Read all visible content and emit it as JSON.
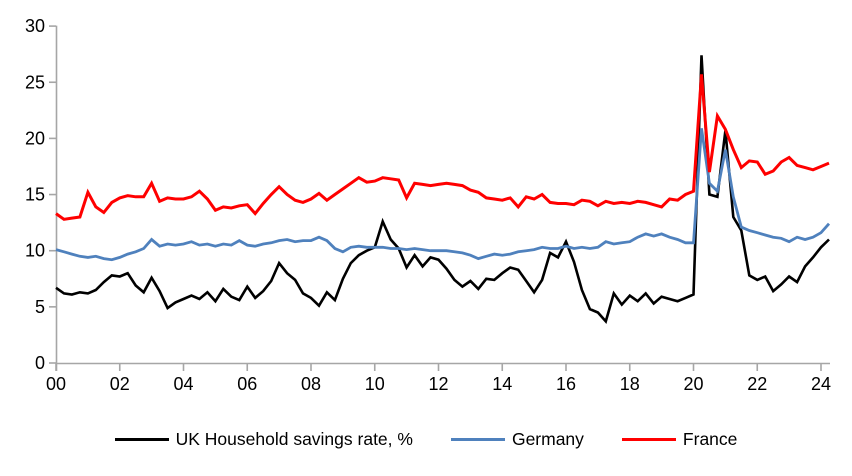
{
  "figure": {
    "background": "#ffffff"
  },
  "axis": {
    "color": "#a6a6a6",
    "label_color": "#000000"
  },
  "chart_data": {
    "type": "line",
    "title": "",
    "xlabel": "",
    "ylabel": "",
    "grid": false,
    "legend_position": "bottom",
    "ylim": [
      0,
      30
    ],
    "xlim": [
      2000,
      2024.6
    ],
    "y_ticks": [
      0,
      5,
      10,
      15,
      20,
      25,
      30
    ],
    "x_ticks": [
      {
        "value": 2000,
        "label": "00"
      },
      {
        "value": 2002,
        "label": "02"
      },
      {
        "value": 2004,
        "label": "04"
      },
      {
        "value": 2006,
        "label": "06"
      },
      {
        "value": 2008,
        "label": "08"
      },
      {
        "value": 2010,
        "label": "10"
      },
      {
        "value": 2012,
        "label": "12"
      },
      {
        "value": 2014,
        "label": "14"
      },
      {
        "value": 2016,
        "label": "16"
      },
      {
        "value": 2018,
        "label": "18"
      },
      {
        "value": 2020,
        "label": "20"
      },
      {
        "value": 2022,
        "label": "22"
      },
      {
        "value": 2024,
        "label": "24"
      }
    ],
    "x_start_year": 2000,
    "x_step_years": 0.25,
    "frequency": "quarterly",
    "period_range": "2000Q1-2024Q2",
    "series": [
      {
        "name": "UK Household savings rate, %",
        "color": "#000000",
        "line_width": 2.6,
        "values": [
          6.7,
          6.2,
          6.1,
          6.3,
          6.2,
          6.5,
          7.2,
          7.8,
          7.7,
          8.0,
          6.9,
          6.3,
          7.6,
          6.4,
          4.9,
          5.4,
          5.7,
          6.0,
          5.7,
          6.3,
          5.5,
          6.6,
          5.9,
          5.6,
          6.8,
          5.8,
          6.4,
          7.3,
          8.9,
          8.0,
          7.4,
          6.2,
          5.8,
          5.1,
          6.3,
          5.6,
          7.5,
          8.9,
          9.6,
          10.0,
          10.3,
          12.6,
          11.0,
          10.2,
          8.5,
          9.6,
          8.6,
          9.4,
          9.2,
          8.4,
          7.4,
          6.8,
          7.3,
          6.6,
          7.5,
          7.4,
          8.0,
          8.5,
          8.3,
          7.3,
          6.3,
          7.4,
          9.8,
          9.4,
          10.8,
          9.0,
          6.5,
          4.8,
          4.5,
          3.7,
          6.2,
          5.2,
          6.0,
          5.5,
          6.2,
          5.3,
          5.9,
          5.7,
          5.5,
          5.8,
          6.1,
          27.4,
          15.0,
          14.8,
          20.7,
          13.0,
          11.8,
          7.8,
          7.4,
          7.7,
          6.4,
          7.0,
          7.7,
          7.2,
          8.6,
          9.4,
          10.3,
          11.0
        ]
      },
      {
        "name": "Germany",
        "color": "#4f81bd",
        "line_width": 2.8,
        "values": [
          10.1,
          9.9,
          9.7,
          9.5,
          9.4,
          9.5,
          9.3,
          9.2,
          9.4,
          9.7,
          9.9,
          10.2,
          11.0,
          10.4,
          10.6,
          10.5,
          10.6,
          10.8,
          10.5,
          10.6,
          10.4,
          10.6,
          10.5,
          10.9,
          10.5,
          10.4,
          10.6,
          10.7,
          10.9,
          11.0,
          10.8,
          10.9,
          10.9,
          11.2,
          10.9,
          10.2,
          9.9,
          10.3,
          10.4,
          10.3,
          10.3,
          10.3,
          10.2,
          10.2,
          10.1,
          10.2,
          10.1,
          10.0,
          10.0,
          10.0,
          9.9,
          9.8,
          9.6,
          9.3,
          9.5,
          9.7,
          9.6,
          9.7,
          9.9,
          10.0,
          10.1,
          10.3,
          10.2,
          10.2,
          10.4,
          10.2,
          10.3,
          10.2,
          10.3,
          10.8,
          10.6,
          10.7,
          10.8,
          11.2,
          11.5,
          11.3,
          11.5,
          11.2,
          11.0,
          10.7,
          10.7,
          20.9,
          16.0,
          15.3,
          19.0,
          14.8,
          12.1,
          11.8,
          11.6,
          11.4,
          11.2,
          11.1,
          10.8,
          11.2,
          11.0,
          11.2,
          11.6,
          12.4
        ]
      },
      {
        "name": "France",
        "color": "#ff0000",
        "line_width": 3,
        "values": [
          13.3,
          12.8,
          12.9,
          13.0,
          15.2,
          13.9,
          13.4,
          14.3,
          14.7,
          14.9,
          14.8,
          14.8,
          16.0,
          14.4,
          14.7,
          14.6,
          14.6,
          14.8,
          15.3,
          14.6,
          13.6,
          13.9,
          13.8,
          14.0,
          14.1,
          13.3,
          14.2,
          15.0,
          15.7,
          15.0,
          14.5,
          14.3,
          14.6,
          15.1,
          14.5,
          15.0,
          15.5,
          16.0,
          16.5,
          16.1,
          16.2,
          16.5,
          16.4,
          16.3,
          14.7,
          16.0,
          15.9,
          15.8,
          15.9,
          16.0,
          15.9,
          15.8,
          15.4,
          15.2,
          14.7,
          14.6,
          14.5,
          14.7,
          13.9,
          14.8,
          14.6,
          15.0,
          14.3,
          14.2,
          14.2,
          14.1,
          14.5,
          14.4,
          14.0,
          14.4,
          14.2,
          14.3,
          14.2,
          14.4,
          14.3,
          14.1,
          13.9,
          14.6,
          14.5,
          15.0,
          15.3,
          25.7,
          17.0,
          22.0,
          20.8,
          19.0,
          17.4,
          18.0,
          17.9,
          16.8,
          17.1,
          17.9,
          18.3,
          17.6,
          17.4,
          17.2,
          17.5,
          17.8
        ]
      }
    ]
  },
  "legend": {
    "items": [
      {
        "label": "UK Household savings rate, %"
      },
      {
        "label": "Germany"
      },
      {
        "label": "France"
      }
    ]
  }
}
